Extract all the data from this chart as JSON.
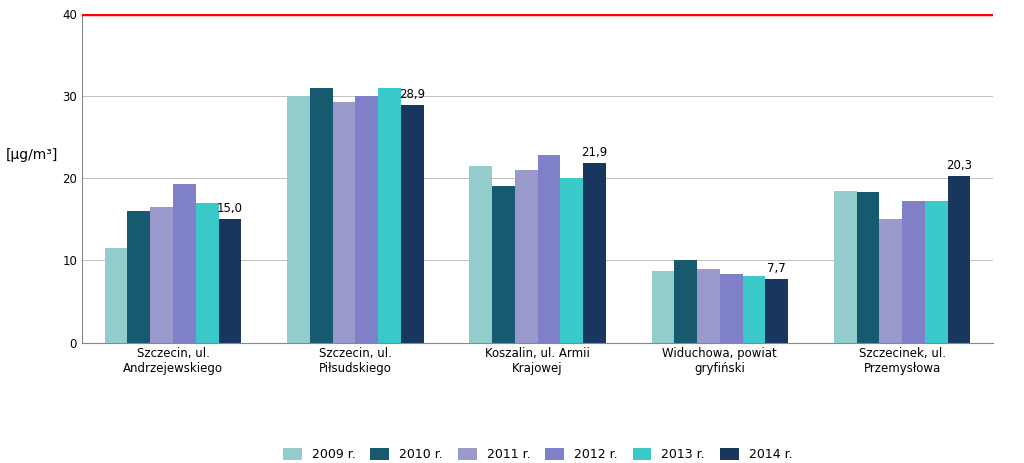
{
  "categories": [
    "Szczecin, ul.\nAndrzejewskiego",
    "Szczecin, ul.\nPiłsudskiego",
    "Koszalin, ul. Armii\nKrajowej",
    "Widuchowa, powiat\ngryfiński",
    "Szczecinek, ul.\nPrzemysłowa"
  ],
  "years": [
    "2009 r.",
    "2010 r.",
    "2011 r.",
    "2012 r.",
    "2013 r.",
    "2014 r."
  ],
  "values": [
    [
      11.5,
      16.0,
      16.5,
      19.3,
      17.0,
      15.0
    ],
    [
      30.0,
      31.0,
      29.3,
      30.0,
      31.0,
      28.9
    ],
    [
      21.5,
      19.0,
      21.0,
      22.8,
      20.0,
      21.9
    ],
    [
      8.7,
      10.0,
      8.9,
      8.4,
      8.1,
      7.7
    ],
    [
      18.4,
      18.3,
      15.0,
      17.2,
      17.2,
      20.3
    ]
  ],
  "colors": [
    "#92CDCC",
    "#17596F",
    "#9999CC",
    "#8080C8",
    "#3BC8C8",
    "#17375E"
  ],
  "annotated_bar_indices": [
    5,
    5,
    5,
    5,
    5
  ],
  "annotations": [
    "15,0",
    "28,9",
    "21,9",
    "7,7",
    "20,3"
  ],
  "ylabel": "[μg/m³]",
  "ylim": [
    0,
    40
  ],
  "yticks": [
    0,
    10,
    20,
    30,
    40
  ],
  "bar_width": 0.125,
  "figure_bg": "#FFFFFF",
  "axes_bg": "#FFFFFF",
  "grid_color": "#BFBFBF",
  "red_line_y": 40,
  "red_line_color": "#FF0000"
}
